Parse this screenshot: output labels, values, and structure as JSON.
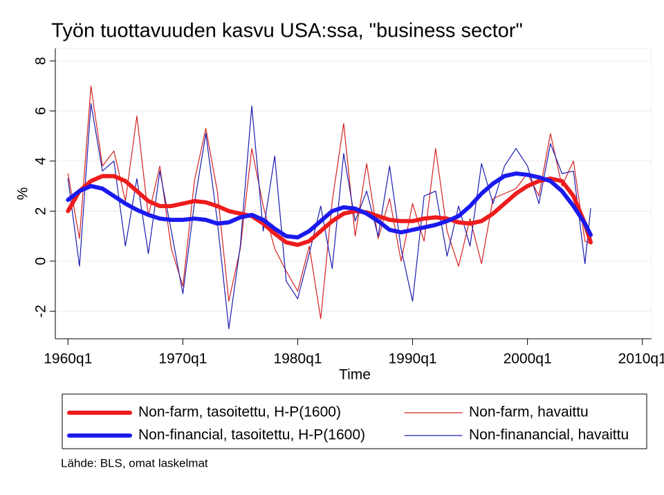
{
  "chart_data": {
    "type": "line",
    "title": "Työn tuottavuuden kasvu USA:ssa, \"business sector\"",
    "x_label": "Time",
    "y_label": "%",
    "note": "Lähde: BLS, omat laskelmat",
    "x": [
      1960,
      1961,
      1962,
      1963,
      1964,
      1965,
      1966,
      1967,
      1968,
      1969,
      1970,
      1971,
      1972,
      1973,
      1974,
      1975,
      1976,
      1977,
      1978,
      1979,
      1980,
      1981,
      1982,
      1983,
      1984,
      1985,
      1986,
      1987,
      1988,
      1989,
      1990,
      1991,
      1992,
      1993,
      1994,
      1995,
      1996,
      1997,
      1998,
      1999,
      2000,
      2001,
      2002,
      2003,
      2004,
      2005,
      2005.5
    ],
    "xlim": [
      1958.9,
      2010.8
    ],
    "xticks": [
      {
        "value": 1960,
        "label": "1960q1"
      },
      {
        "value": 1970,
        "label": "1970q1"
      },
      {
        "value": 1980,
        "label": "1980q1"
      },
      {
        "value": 1990,
        "label": "1990q1"
      },
      {
        "value": 2000,
        "label": "2000q1"
      },
      {
        "value": 2010,
        "label": "2010q1"
      }
    ],
    "ylim": [
      -3.1,
      8.5
    ],
    "yticks": [
      -2,
      0,
      2,
      4,
      6,
      8
    ],
    "grid": true,
    "series": [
      {
        "name": "Non-farm, tasoitettu, H-P(1600)",
        "color": "#ee1c1c",
        "width": 6,
        "values": [
          2.0,
          2.8,
          3.2,
          3.4,
          3.4,
          3.2,
          2.8,
          2.4,
          2.2,
          2.2,
          2.3,
          2.4,
          2.35,
          2.2,
          2.0,
          1.9,
          1.8,
          1.5,
          1.1,
          0.75,
          0.65,
          0.8,
          1.2,
          1.6,
          1.9,
          2.0,
          1.95,
          1.8,
          1.65,
          1.6,
          1.6,
          1.7,
          1.75,
          1.7,
          1.55,
          1.5,
          1.6,
          1.9,
          2.3,
          2.7,
          3.0,
          3.2,
          3.3,
          3.2,
          2.6,
          1.5,
          0.75
        ]
      },
      {
        "name": "Non-farm, havaittu",
        "color": "#d42020",
        "width": 1.2,
        "values": [
          3.5,
          0.9,
          7.0,
          3.8,
          4.4,
          2.4,
          5.8,
          1.8,
          3.8,
          0.5,
          -1.0,
          3.2,
          5.3,
          2.8,
          -1.6,
          0.5,
          4.5,
          2.2,
          0.5,
          -0.4,
          -1.2,
          0.6,
          -2.3,
          2.4,
          5.5,
          1.0,
          3.9,
          0.9,
          2.5,
          0.0,
          2.3,
          0.8,
          4.5,
          1.2,
          -0.2,
          1.7,
          -0.1,
          2.5,
          2.7,
          2.9,
          3.5,
          2.6,
          5.1,
          3.0,
          4.0,
          0.8,
          0.7
        ]
      },
      {
        "name": "Non-financial, tasoitettu, H-P(1600)",
        "color": "#1a1aee",
        "width": 6,
        "values": [
          2.45,
          2.8,
          3.0,
          2.9,
          2.6,
          2.3,
          2.05,
          1.85,
          1.7,
          1.65,
          1.65,
          1.7,
          1.65,
          1.5,
          1.55,
          1.75,
          1.85,
          1.65,
          1.3,
          1.0,
          0.95,
          1.2,
          1.6,
          2.0,
          2.15,
          2.1,
          1.9,
          1.6,
          1.25,
          1.15,
          1.25,
          1.35,
          1.45,
          1.6,
          1.8,
          2.2,
          2.7,
          3.1,
          3.4,
          3.5,
          3.45,
          3.35,
          3.2,
          2.8,
          2.2,
          1.5,
          1.05
        ]
      },
      {
        "name": "Non-finanancial, havaittu",
        "color": "#1a1ab0",
        "width": 1.2,
        "values": [
          3.3,
          -0.2,
          6.3,
          3.6,
          4.0,
          0.6,
          3.3,
          0.3,
          3.6,
          1.2,
          -1.3,
          2.3,
          5.1,
          1.6,
          -2.7,
          0.6,
          6.2,
          1.2,
          4.2,
          -0.8,
          -1.5,
          0.3,
          2.2,
          -0.3,
          4.3,
          1.6,
          2.8,
          1.0,
          3.8,
          0.5,
          -1.6,
          2.6,
          2.8,
          0.2,
          2.2,
          0.6,
          3.9,
          2.3,
          3.8,
          4.5,
          3.8,
          2.3,
          4.7,
          3.5,
          3.6,
          -0.1,
          2.1
        ]
      }
    ]
  }
}
